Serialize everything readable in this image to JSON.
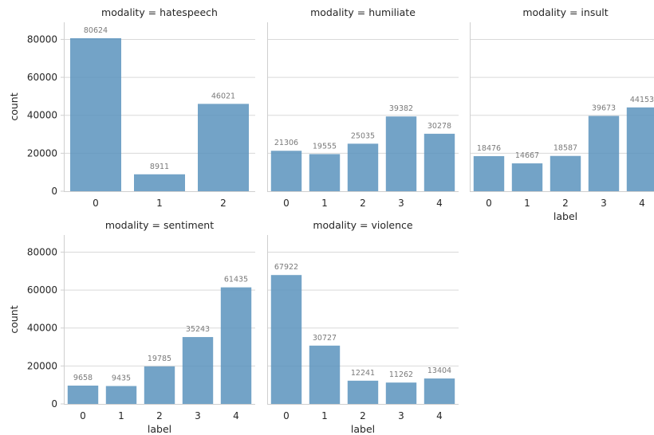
{
  "colors": {
    "bar": "#5b93bd",
    "grid": "#d9d9d9",
    "text": "#262626",
    "value_label": "#7a7a7a"
  },
  "chart_data": [
    {
      "type": "bar",
      "title": "modality = hatespeech",
      "xlabel": "",
      "ylabel": "count",
      "categories": [
        "0",
        "1",
        "2"
      ],
      "values": [
        80624,
        8911,
        46021
      ],
      "yticks": [
        "0",
        "20000",
        "40000",
        "60000",
        "80000"
      ],
      "ylim": [
        0,
        89000
      ],
      "grid": true
    },
    {
      "type": "bar",
      "title": "modality = humiliate",
      "xlabel": "",
      "ylabel": "",
      "categories": [
        "0",
        "1",
        "2",
        "3",
        "4"
      ],
      "values": [
        21306,
        19555,
        25035,
        39382,
        30278
      ],
      "ylim": [
        0,
        89000
      ],
      "grid": true
    },
    {
      "type": "bar",
      "title": "modality = insult",
      "xlabel": "label",
      "ylabel": "",
      "categories": [
        "0",
        "1",
        "2",
        "3",
        "4"
      ],
      "values": [
        18476,
        14667,
        18587,
        39673,
        44153
      ],
      "ylim": [
        0,
        89000
      ],
      "grid": true
    },
    {
      "type": "bar",
      "title": "modality = sentiment",
      "xlabel": "label",
      "ylabel": "count",
      "categories": [
        "0",
        "1",
        "2",
        "3",
        "4"
      ],
      "values": [
        9658,
        9435,
        19785,
        35243,
        61435
      ],
      "yticks": [
        "0",
        "20000",
        "40000",
        "60000",
        "80000"
      ],
      "ylim": [
        0,
        89000
      ],
      "grid": true
    },
    {
      "type": "bar",
      "title": "modality = violence",
      "xlabel": "label",
      "ylabel": "",
      "categories": [
        "0",
        "1",
        "2",
        "3",
        "4"
      ],
      "values": [
        67922,
        30727,
        12241,
        11262,
        13404
      ],
      "ylim": [
        0,
        89000
      ],
      "grid": true
    }
  ]
}
